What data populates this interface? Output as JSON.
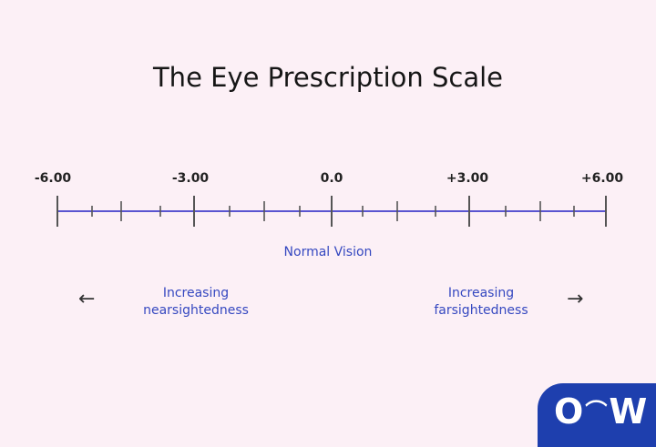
{
  "title": "The Eye Prescription Scale",
  "scale": {
    "min": -6,
    "max": 6,
    "labels": [
      "-6.00",
      "-3.00",
      "0.0",
      "+3.00",
      "+6.00"
    ],
    "line_color": "#5a55d0"
  },
  "center_label": "Normal Vision",
  "left_label": [
    "Increasing",
    "nearsightedness"
  ],
  "right_label": [
    "Increasing",
    "farsightedness"
  ],
  "left_arrow": "←",
  "right_arrow": "→",
  "logo": "O⌒W",
  "text_color": "#3548c0"
}
